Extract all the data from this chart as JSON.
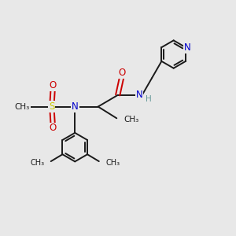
{
  "bg_color": "#e8e8e8",
  "bond_color": "#1a1a1a",
  "N_color": "#0000cc",
  "O_color": "#cc0000",
  "S_color": "#cccc00",
  "H_color": "#669999",
  "line_width": 1.4,
  "figsize": [
    3.0,
    3.0
  ],
  "dpi": 100,
  "xlim": [
    0,
    10
  ],
  "ylim": [
    0,
    10
  ]
}
